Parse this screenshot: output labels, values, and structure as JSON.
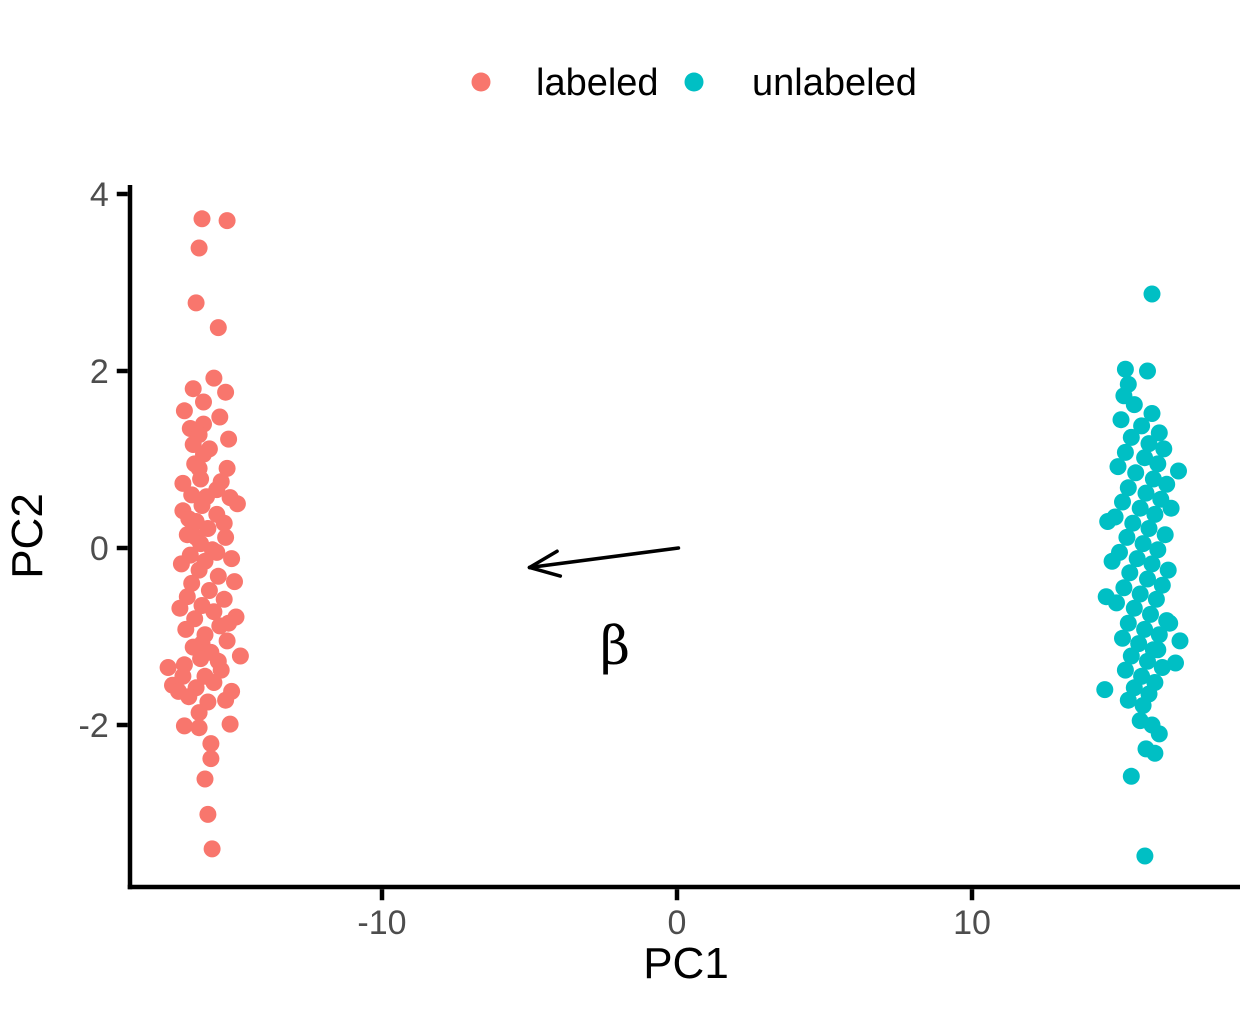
{
  "chart_data": {
    "type": "scatter",
    "title": "",
    "xlabel": "PC1",
    "ylabel": "PC2",
    "xlim": [
      -18.6,
      18.9
    ],
    "ylim": [
      -3.85,
      4.1
    ],
    "x_ticks": [
      -10,
      0,
      10
    ],
    "y_ticks": [
      4,
      2,
      0,
      -2
    ],
    "grid": false,
    "background": "#FFFFFF",
    "axis_color": "#000000",
    "tick_label_color": "#4D4D4D",
    "legend": {
      "position": "top-center",
      "entries": [
        {
          "label": "labeled",
          "color": "#F8766D"
        },
        {
          "label": "unlabeled",
          "color": "#00BFC4"
        }
      ]
    },
    "series": [
      {
        "name": "labeled",
        "color": "#F8766D",
        "points": [
          [
            -16.1,
            3.72
          ],
          [
            -15.25,
            3.7
          ],
          [
            -16.2,
            3.39
          ],
          [
            -16.3,
            2.77
          ],
          [
            -15.55,
            2.49
          ],
          [
            -15.7,
            1.92
          ],
          [
            -16.4,
            1.8
          ],
          [
            -15.3,
            1.76
          ],
          [
            -16.05,
            1.65
          ],
          [
            -16.7,
            1.55
          ],
          [
            -15.5,
            1.48
          ],
          [
            -16.5,
            1.35
          ],
          [
            -16.05,
            1.4
          ],
          [
            -16.2,
            1.28
          ],
          [
            -15.2,
            1.23
          ],
          [
            -16.4,
            1.17
          ],
          [
            -15.85,
            1.12
          ],
          [
            -16.05,
            1.06
          ],
          [
            -16.35,
            0.95
          ],
          [
            -15.25,
            0.9
          ],
          [
            -16.2,
            0.9
          ],
          [
            -16.15,
            0.78
          ],
          [
            -16.75,
            0.73
          ],
          [
            -15.45,
            0.75
          ],
          [
            -15.6,
            0.66
          ],
          [
            -16.45,
            0.6
          ],
          [
            -15.15,
            0.57
          ],
          [
            -15.95,
            0.58
          ],
          [
            -16.1,
            0.48
          ],
          [
            -14.9,
            0.5
          ],
          [
            -16.75,
            0.42
          ],
          [
            -15.6,
            0.38
          ],
          [
            -16.55,
            0.33
          ],
          [
            -16.3,
            0.3
          ],
          [
            -15.35,
            0.28
          ],
          [
            -15.9,
            0.22
          ],
          [
            -16.6,
            0.15
          ],
          [
            -15.3,
            0.12
          ],
          [
            -16.3,
            0.12
          ],
          [
            -16.15,
            0.05
          ],
          [
            -15.75,
            -0.02
          ],
          [
            -15.6,
            -0.05
          ],
          [
            -16.5,
            -0.08
          ],
          [
            -15.1,
            -0.12
          ],
          [
            -16.0,
            -0.15
          ],
          [
            -16.8,
            -0.18
          ],
          [
            -16.2,
            -0.25
          ],
          [
            -15.55,
            -0.32
          ],
          [
            -16.45,
            -0.4
          ],
          [
            -15.0,
            -0.38
          ],
          [
            -15.85,
            -0.48
          ],
          [
            -16.6,
            -0.55
          ],
          [
            -15.35,
            -0.58
          ],
          [
            -16.1,
            -0.65
          ],
          [
            -15.7,
            -0.72
          ],
          [
            -16.85,
            -0.68
          ],
          [
            -16.35,
            -0.8
          ],
          [
            -14.95,
            -0.78
          ],
          [
            -15.2,
            -0.85
          ],
          [
            -15.5,
            -0.88
          ],
          [
            -16.65,
            -0.92
          ],
          [
            -16.0,
            -0.98
          ],
          [
            -15.25,
            -1.05
          ],
          [
            -16.1,
            -1.08
          ],
          [
            -16.4,
            -1.12
          ],
          [
            -15.8,
            -1.18
          ],
          [
            -16.15,
            -1.25
          ],
          [
            -14.8,
            -1.22
          ],
          [
            -15.55,
            -1.28
          ],
          [
            -16.7,
            -1.32
          ],
          [
            -17.25,
            -1.35
          ],
          [
            -15.45,
            -1.38
          ],
          [
            -16.0,
            -1.45
          ],
          [
            -16.75,
            -1.45
          ],
          [
            -17.1,
            -1.55
          ],
          [
            -15.7,
            -1.52
          ],
          [
            -16.3,
            -1.58
          ],
          [
            -15.1,
            -1.62
          ],
          [
            -16.9,
            -1.62
          ],
          [
            -16.55,
            -1.68
          ],
          [
            -15.9,
            -1.74
          ],
          [
            -15.3,
            -1.72
          ],
          [
            -16.2,
            -1.86
          ],
          [
            -15.15,
            -1.99
          ],
          [
            -16.7,
            -2.01
          ],
          [
            -16.2,
            -2.03
          ],
          [
            -15.8,
            -2.21
          ],
          [
            -15.8,
            -2.38
          ],
          [
            -16.0,
            -2.61
          ],
          [
            -15.9,
            -3.01
          ],
          [
            -15.76,
            -3.4
          ]
        ]
      },
      {
        "name": "unlabeled",
        "color": "#00BFC4",
        "points": [
          [
            16.1,
            2.87
          ],
          [
            15.2,
            2.02
          ],
          [
            15.95,
            2.0
          ],
          [
            15.3,
            1.85
          ],
          [
            15.15,
            1.72
          ],
          [
            15.5,
            1.62
          ],
          [
            16.1,
            1.52
          ],
          [
            15.05,
            1.45
          ],
          [
            15.75,
            1.38
          ],
          [
            16.35,
            1.3
          ],
          [
            15.4,
            1.25
          ],
          [
            16.0,
            1.18
          ],
          [
            16.5,
            1.12
          ],
          [
            15.2,
            1.08
          ],
          [
            15.85,
            1.02
          ],
          [
            16.3,
            0.95
          ],
          [
            14.95,
            0.92
          ],
          [
            17.0,
            0.87
          ],
          [
            15.55,
            0.85
          ],
          [
            16.15,
            0.78
          ],
          [
            16.6,
            0.72
          ],
          [
            15.3,
            0.68
          ],
          [
            15.9,
            0.62
          ],
          [
            16.4,
            0.55
          ],
          [
            15.1,
            0.52
          ],
          [
            15.7,
            0.45
          ],
          [
            16.75,
            0.45
          ],
          [
            16.2,
            0.38
          ],
          [
            14.85,
            0.35
          ],
          [
            14.6,
            0.3
          ],
          [
            15.45,
            0.28
          ],
          [
            16.0,
            0.22
          ],
          [
            16.55,
            0.15
          ],
          [
            15.25,
            0.12
          ],
          [
            15.8,
            0.05
          ],
          [
            16.3,
            -0.02
          ],
          [
            15.0,
            -0.05
          ],
          [
            15.6,
            -0.12
          ],
          [
            16.1,
            -0.18
          ],
          [
            14.75,
            -0.15
          ],
          [
            16.65,
            -0.25
          ],
          [
            15.35,
            -0.28
          ],
          [
            15.95,
            -0.35
          ],
          [
            16.45,
            -0.42
          ],
          [
            15.15,
            -0.45
          ],
          [
            14.55,
            -0.55
          ],
          [
            15.7,
            -0.52
          ],
          [
            16.25,
            -0.58
          ],
          [
            14.9,
            -0.62
          ],
          [
            15.5,
            -0.68
          ],
          [
            16.05,
            -0.75
          ],
          [
            16.6,
            -0.82
          ],
          [
            15.3,
            -0.85
          ],
          [
            16.7,
            -0.85
          ],
          [
            15.85,
            -0.92
          ],
          [
            16.35,
            -0.98
          ],
          [
            15.1,
            -1.02
          ],
          [
            17.05,
            -1.05
          ],
          [
            15.65,
            -1.08
          ],
          [
            16.15,
            -1.15
          ],
          [
            16.3,
            -1.15
          ],
          [
            15.4,
            -1.22
          ],
          [
            15.95,
            -1.28
          ],
          [
            16.45,
            -1.35
          ],
          [
            15.2,
            -1.38
          ],
          [
            16.9,
            -1.3
          ],
          [
            15.75,
            -1.45
          ],
          [
            16.2,
            -1.52
          ],
          [
            15.5,
            -1.58
          ],
          [
            14.5,
            -1.6
          ],
          [
            16.0,
            -1.65
          ],
          [
            15.3,
            -1.72
          ],
          [
            15.8,
            -1.78
          ],
          [
            15.7,
            -1.95
          ],
          [
            16.1,
            -2.0
          ],
          [
            16.35,
            -2.1
          ],
          [
            15.9,
            -2.27
          ],
          [
            16.2,
            -2.32
          ],
          [
            15.4,
            -2.58
          ],
          [
            15.86,
            -3.48
          ]
        ]
      }
    ],
    "annotations": {
      "arrow": {
        "from_xy": [
          0.05,
          0.0
        ],
        "to_xy": [
          -5.0,
          -0.22
        ],
        "color": "#000000"
      },
      "beta_label": {
        "text": "β",
        "x": -2.1,
        "y": -1.1,
        "color": "#000000"
      }
    }
  }
}
